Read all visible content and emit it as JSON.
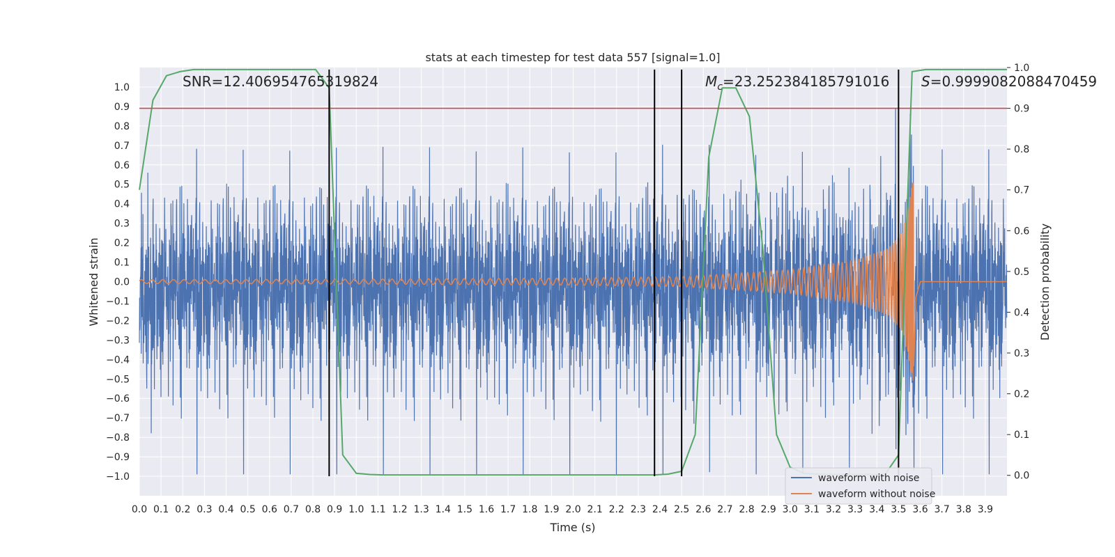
{
  "chart_data": {
    "type": "line",
    "title": "stats at each timestep for test data 557 [signal=1.0]",
    "xlabel": "Time (s)",
    "ylabel": "Whitened strain",
    "ylabel_right": "Detection probability",
    "xlim": [
      0.0,
      4.0
    ],
    "ylim": [
      -1.1,
      1.1
    ],
    "ylim_right": [
      -0.05,
      1.0
    ],
    "x_ticks": [
      0.0,
      0.1,
      0.2,
      0.3,
      0.4,
      0.5,
      0.6,
      0.7,
      0.8,
      0.9,
      1.0,
      1.1,
      1.2,
      1.3,
      1.4,
      1.5,
      1.6,
      1.7,
      1.8,
      1.9,
      2.0,
      2.1,
      2.2,
      2.3,
      2.4,
      2.5,
      2.6,
      2.7,
      2.8,
      2.9,
      3.0,
      3.1,
      3.2,
      3.3,
      3.4,
      3.5,
      3.6,
      3.7,
      3.8,
      3.9
    ],
    "x_tick_labels": [
      "0.0",
      "0.1",
      "0.2",
      "0.3",
      "0.4",
      "0.5",
      "0.6",
      "0.7",
      "0.8",
      "0.9",
      "1.0",
      "1.1",
      "1.2",
      "1.3",
      "1.4",
      "1.5",
      "1.6",
      "1.7",
      "1.8",
      "1.9",
      "2.0",
      "2.1",
      "2.2",
      "2.3",
      "2.4",
      "2.5",
      "2.6",
      "2.7",
      "2.8",
      "2.9",
      "3.0",
      "3.1",
      "3.2",
      "3.3",
      "3.4",
      "3.5",
      "3.6",
      "3.7",
      "3.8",
      "3.9"
    ],
    "y_ticks": [
      1.0,
      0.9,
      0.8,
      0.7,
      0.6,
      0.5,
      0.4,
      0.3,
      0.2,
      0.1,
      0.0,
      -0.1,
      -0.2,
      -0.3,
      -0.4,
      -0.5,
      -0.6,
      -0.7,
      -0.8,
      -0.9,
      -1.0
    ],
    "y_tick_labels": [
      "1.0",
      "0.9",
      "0.8",
      "0.7",
      "0.6",
      "0.5",
      "0.4",
      "0.3",
      "0.2",
      "0.1",
      "0.0",
      "−0.1",
      "−0.2",
      "−0.3",
      "−0.4",
      "−0.5",
      "−0.6",
      "−0.7",
      "−0.8",
      "−0.9",
      "−1.0"
    ],
    "y_right_ticks": [
      1.0,
      0.9,
      0.8,
      0.7,
      0.6,
      0.5,
      0.4,
      0.3,
      0.2,
      0.1,
      0.0
    ],
    "y_right_tick_labels": [
      "1.0",
      "0.9",
      "0.8",
      "0.7",
      "0.6",
      "0.5",
      "0.4",
      "0.3",
      "0.2",
      "0.1",
      "0.0"
    ],
    "grid": true,
    "legend_position": "bottom-right",
    "colors": {
      "noise": "#4c72b0",
      "clean": "#dd8452",
      "prob": "#55a868",
      "threshold": "#c44e52",
      "vline": "#000000",
      "background": "#eaeaf2",
      "grid": "#ffffff"
    },
    "series": [
      {
        "name": "waveform with noise",
        "kind": "noise",
        "approx_amplitude": 0.3,
        "sample_rate": 1024
      },
      {
        "name": "waveform without noise",
        "kind": "chirp",
        "merger_time": 3.57,
        "points": [
          [
            0.0,
            0.01
          ],
          [
            1.0,
            0.012
          ],
          [
            2.0,
            0.018
          ],
          [
            2.5,
            0.025
          ],
          [
            3.0,
            0.06
          ],
          [
            3.3,
            0.11
          ],
          [
            3.45,
            0.17
          ],
          [
            3.52,
            0.26
          ],
          [
            3.55,
            0.42
          ],
          [
            3.57,
            0.55
          ],
          [
            3.58,
            0.1
          ],
          [
            3.6,
            0.005
          ],
          [
            4.0,
            0.0
          ]
        ]
      },
      {
        "name": "detection probability",
        "axis": "right",
        "x": [
          0.0,
          0.0625,
          0.125,
          0.1875,
          0.25,
          0.3125,
          0.375,
          0.4375,
          0.5,
          0.5625,
          0.625,
          0.6875,
          0.75,
          0.8125,
          0.875,
          0.9375,
          1.0,
          1.0625,
          1.125,
          1.1875,
          1.25,
          1.3125,
          1.375,
          1.4375,
          1.5,
          1.5625,
          1.625,
          1.6875,
          1.75,
          1.8125,
          1.875,
          1.9375,
          2.0,
          2.0625,
          2.125,
          2.1875,
          2.25,
          2.3125,
          2.375,
          2.4375,
          2.5,
          2.5625,
          2.625,
          2.6875,
          2.75,
          2.8125,
          2.875,
          2.9375,
          3.0,
          3.0625,
          3.125,
          3.1875,
          3.25,
          3.3125,
          3.375,
          3.4375,
          3.5,
          3.5625,
          3.625,
          3.6875,
          3.75,
          3.8125,
          3.875,
          3.9375,
          4.0
        ],
        "y": [
          0.7,
          0.92,
          0.98,
          0.99,
          0.995,
          0.995,
          0.995,
          0.995,
          0.995,
          0.995,
          0.995,
          0.995,
          0.995,
          0.995,
          0.95,
          0.05,
          0.005,
          0.002,
          0.001,
          0.001,
          0.001,
          0.001,
          0.001,
          0.001,
          0.001,
          0.001,
          0.001,
          0.001,
          0.001,
          0.001,
          0.001,
          0.001,
          0.001,
          0.001,
          0.001,
          0.001,
          0.001,
          0.001,
          0.001,
          0.003,
          0.01,
          0.1,
          0.78,
          0.95,
          0.95,
          0.88,
          0.55,
          0.1,
          0.02,
          0.005,
          0.003,
          0.002,
          0.002,
          0.002,
          0.002,
          0.002,
          0.05,
          0.99,
          0.995,
          0.995,
          0.995,
          0.995,
          0.995,
          0.995,
          0.995
        ]
      }
    ],
    "threshold": {
      "axis": "right",
      "value": 0.9
    },
    "vertical_lines": [
      {
        "x": 0.875,
        "y_top": 0.995,
        "y_bottom": -1.0
      },
      {
        "x": 2.375,
        "y_top": 0.995,
        "y_bottom": -1.0
      },
      {
        "x": 2.5,
        "y_top": 0.995,
        "y_bottom": -1.0
      },
      {
        "x": 3.5,
        "y_top": 0.995,
        "y_bottom": -1.0
      }
    ],
    "annotations": {
      "snr": "SNR=12.406954765319824",
      "mc_symbol": "M",
      "mc_sub": "c",
      "mc_value": "=23.252384185791016",
      "s_symbol": "S",
      "s_value": "=0.9999082088470459"
    }
  }
}
